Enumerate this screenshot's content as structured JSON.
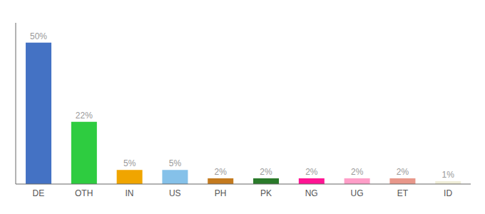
{
  "chart_data": {
    "type": "bar",
    "categories": [
      "DE",
      "OTH",
      "IN",
      "US",
      "PH",
      "PK",
      "NG",
      "UG",
      "ET",
      "ID"
    ],
    "values": [
      50,
      22,
      5,
      5,
      2,
      2,
      2,
      2,
      2,
      1
    ],
    "value_labels": [
      "50%",
      "22%",
      "5%",
      "5%",
      "2%",
      "2%",
      "2%",
      "2%",
      "2%",
      "1%"
    ],
    "colors": [
      "#4472c4",
      "#2ecc40",
      "#f0a500",
      "#85c1e9",
      "#c47a1e",
      "#2a7a2a",
      "#ff1493",
      "#ff9ec8",
      "#e8978a",
      "#f0eed8"
    ],
    "ylim": [
      0,
      57
    ],
    "data_labels": true,
    "tick_labels": "x",
    "grid": false
  }
}
